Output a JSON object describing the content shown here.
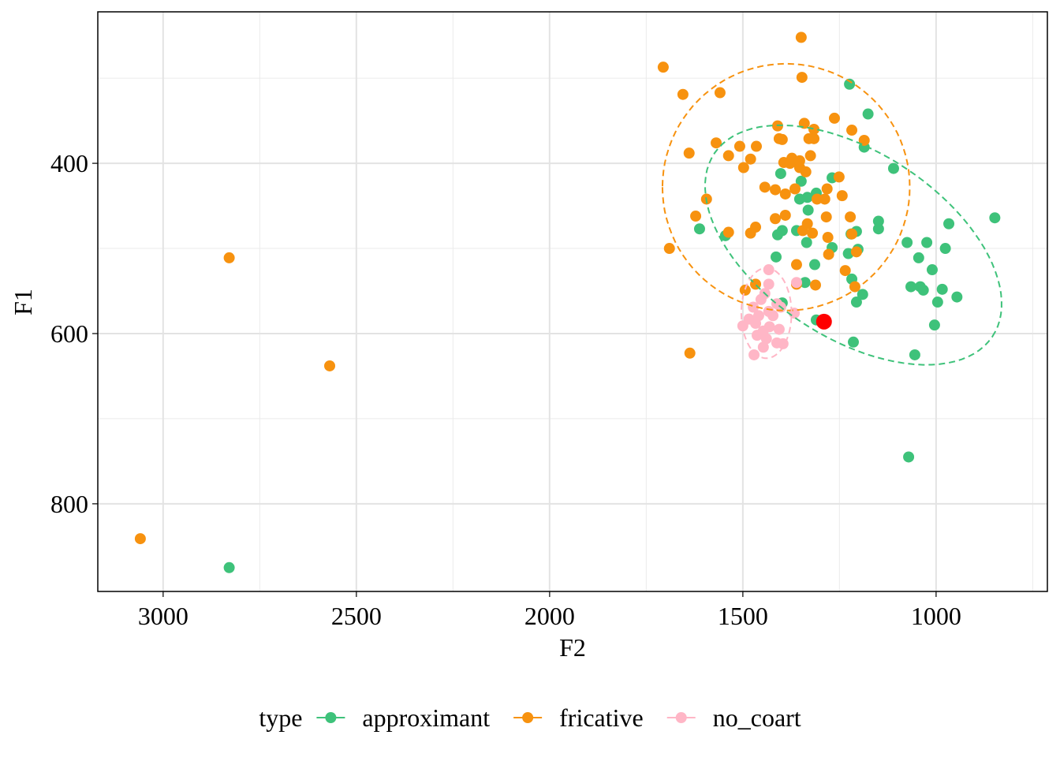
{
  "chart_data": {
    "type": "scatter",
    "x_label": "F2",
    "y_label": "F1",
    "xlim": [
      3169,
      712
    ],
    "ylim": [
      222,
      903
    ],
    "xticks": [
      3000,
      2500,
      2000,
      1500,
      1000
    ],
    "yticks": [
      400,
      600,
      800
    ],
    "x_minor_grid": [
      2750,
      2250,
      1750,
      1250,
      750
    ],
    "y_minor_grid": [
      300,
      500,
      700
    ],
    "grid": true,
    "legend": "bottom",
    "legend_title": "type",
    "series": [
      {
        "name": "approximant",
        "color": "#3ec27a",
        "x": [
          2829,
          1224,
          1176,
          1186,
          1110,
          848,
          967,
          976,
          1024,
          1075,
          1045,
          1010,
          1065,
          1041,
          1033,
          984,
          946,
          996,
          1004,
          1055,
          1071,
          1214,
          1206,
          1190,
          1218,
          1149,
          1149,
          1202,
          1227,
          1206,
          1220,
          1269,
          1269,
          1310,
          1314,
          1331,
          1333,
          1335,
          1339,
          1349,
          1353,
          1361,
          1398,
          1402,
          1410,
          1414,
          1398,
          1545,
          1612,
          1310
        ],
        "values": [
          875,
          307,
          342,
          381,
          406,
          464,
          471,
          500,
          493,
          493,
          511,
          525,
          545,
          545,
          549,
          548,
          557,
          563,
          590,
          625,
          745,
          610,
          563,
          554,
          536,
          468,
          477,
          501,
          506,
          480,
          483,
          499,
          417,
          435,
          519,
          455,
          440,
          493,
          540,
          421,
          442,
          479,
          479,
          412,
          484,
          510,
          564,
          485,
          477,
          584
        ],
        "ellipse": {
          "cx": 1214,
          "cy": 496,
          "a": [
            -367,
            102
          ],
          "b": [
            112,
            97
          ]
        }
      },
      {
        "name": "fricative",
        "color": "#f7920f",
        "x": [
          3059,
          2829,
          2569,
          1706,
          1655,
          1639,
          1637,
          1690,
          1622,
          1594,
          1569,
          1559,
          1537,
          1537,
          1508,
          1498,
          1494,
          1480,
          1480,
          1467,
          1467,
          1465,
          1443,
          1416,
          1416,
          1410,
          1406,
          1398,
          1394,
          1390,
          1390,
          1378,
          1373,
          1365,
          1361,
          1361,
          1353,
          1353,
          1349,
          1347,
          1345,
          1341,
          1337,
          1333,
          1329,
          1325,
          1320,
          1316,
          1316,
          1308,
          1312,
          1288,
          1282,
          1284,
          1280,
          1278,
          1263,
          1251,
          1243,
          1235,
          1222,
          1218,
          1218,
          1210,
          1206,
          1186
        ],
        "values": [
          841,
          511,
          638,
          287,
          319,
          388,
          623,
          500,
          462,
          442,
          376,
          317,
          391,
          481,
          380,
          405,
          549,
          395,
          482,
          542,
          475,
          380,
          428,
          431,
          465,
          356,
          371,
          372,
          399,
          436,
          461,
          400,
          394,
          430,
          519,
          542,
          405,
          397,
          252,
          299,
          479,
          353,
          410,
          471,
          371,
          391,
          482,
          360,
          371,
          442,
          543,
          442,
          430,
          463,
          487,
          507,
          347,
          416,
          438,
          526,
          463,
          483,
          361,
          545,
          504,
          373
        ],
        "ellipse": {
          "cx": 1388,
          "cy": 428,
          "a": [
            320,
            0
          ],
          "b": [
            0,
            145
          ]
        }
      },
      {
        "name": "no_coart",
        "color": "#ffb6c6",
        "x": [
          1500,
          1471,
          1433,
          1433,
          1443,
          1361,
          1367,
          1473,
          1459,
          1484,
          1463,
          1447,
          1431,
          1422,
          1412,
          1402,
          1467,
          1439,
          1412,
          1396,
          1433,
          1453,
          1447,
          1406
        ],
        "values": [
          591,
          625,
          525,
          542,
          553,
          540,
          576,
          569,
          579,
          583,
          602,
          597,
          592,
          579,
          565,
          569,
          588,
          606,
          611,
          612,
          574,
          560,
          616,
          595
        ],
        "ellipse": {
          "cx": 1439,
          "cy": 576,
          "a": [
            65,
            0
          ],
          "b": [
            0,
            53
          ]
        }
      }
    ],
    "highlight": {
      "x": 1290,
      "y": 586,
      "color": "#ff0000"
    }
  }
}
